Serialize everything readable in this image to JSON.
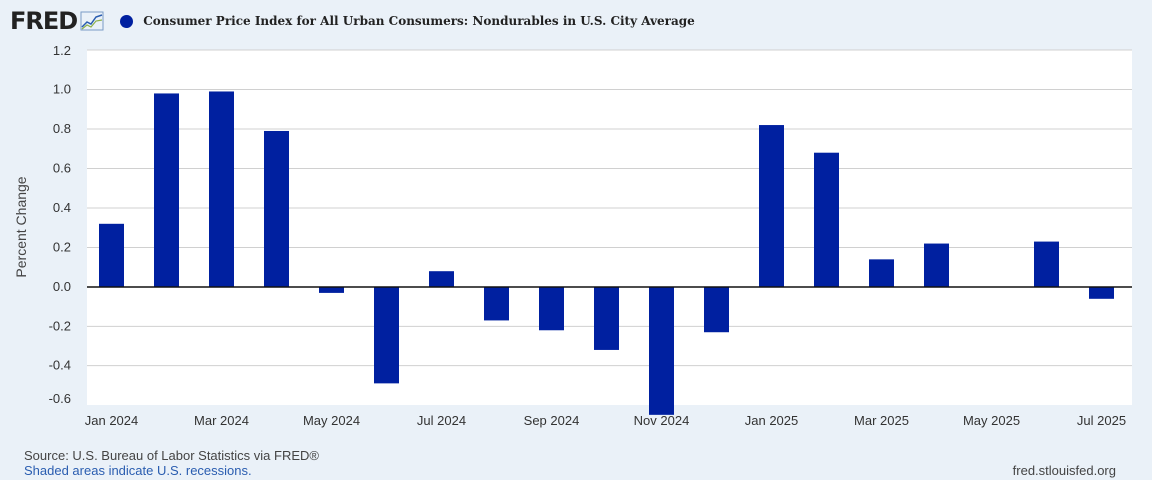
{
  "brand": {
    "logo_text": "FRED"
  },
  "colors": {
    "series": "#0020a0",
    "plot_bg": "#ffffff",
    "page_bg": "#eaf1f8",
    "grid": "#d0d0d0"
  },
  "chart_data": {
    "type": "bar",
    "title": "Consumer Price Index for All Urban Consumers: Nondurables in U.S. City Average",
    "xlabel": "",
    "ylabel": "Percent Change",
    "ylim": [
      -0.6,
      1.2
    ],
    "yticks": [
      "1.2",
      "1.0",
      "0.8",
      "0.6",
      "0.4",
      "0.2",
      "0.0",
      "-0.2",
      "-0.4",
      "-0.6"
    ],
    "ytick_values": [
      1.2,
      1.0,
      0.8,
      0.6,
      0.4,
      0.2,
      0.0,
      -0.2,
      -0.4,
      -0.6
    ],
    "xtick_labels": [
      "Jan 2024",
      "Mar 2024",
      "May 2024",
      "Jul 2024",
      "Sep 2024",
      "Nov 2024",
      "Jan 2025",
      "Mar 2025",
      "May 2025",
      "Jul 2025"
    ],
    "xtick_indices": [
      0,
      2,
      4,
      6,
      8,
      10,
      12,
      14,
      16,
      18
    ],
    "categories": [
      "Jan 2024",
      "Feb 2024",
      "Mar 2024",
      "Apr 2024",
      "May 2024",
      "Jun 2024",
      "Jul 2024",
      "Aug 2024",
      "Sep 2024",
      "Oct 2024",
      "Nov 2024",
      "Dec 2024",
      "Jan 2025",
      "Feb 2025",
      "Mar 2025",
      "Apr 2025",
      "May 2025",
      "Jun 2025",
      "Jul 2025"
    ],
    "series": [
      {
        "name": "Consumer Price Index for All Urban Consumers: Nondurables in U.S. City Average",
        "values": [
          0.32,
          0.98,
          0.99,
          0.79,
          -0.03,
          -0.49,
          0.08,
          -0.17,
          -0.22,
          -0.32,
          -0.65,
          -0.23,
          0.82,
          0.68,
          0.14,
          0.22,
          0.0,
          0.23,
          -0.06
        ]
      }
    ],
    "grid": true
  },
  "footer": {
    "source": "Source: U.S. Bureau of Labor Statistics via FRED®",
    "recession_note": "Shaded areas indicate U.S. recessions.",
    "site": "fred.stlouisfed.org"
  }
}
